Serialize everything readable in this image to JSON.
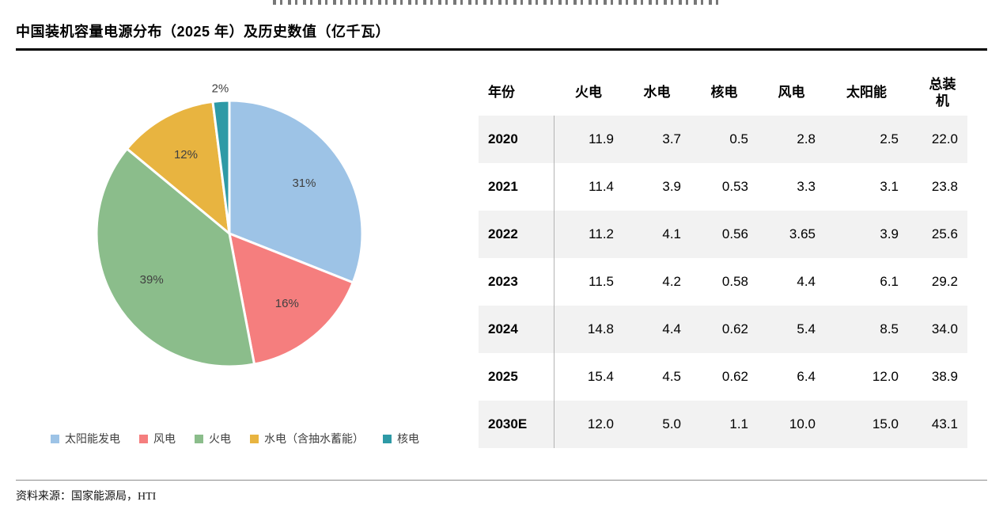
{
  "header": {
    "title": "中国装机容量电源分布（2025 年）及历史数值（亿千瓦）"
  },
  "footer": {
    "source": "资料来源：国家能源局，HTI"
  },
  "chart_data": [
    {
      "type": "pie",
      "title": "中国装机容量电源分布（2025 年）",
      "unit": "%",
      "start_angle": "top",
      "direction": "clockwise",
      "legend_position": "bottom",
      "slices": [
        {
          "label": "太阳能发电",
          "value": 31,
          "color": "#9DC3E6"
        },
        {
          "label": "风电",
          "value": 16,
          "color": "#F57E7E"
        },
        {
          "label": "火电",
          "value": 39,
          "color": "#8BBD8B"
        },
        {
          "label": "水电（含抽水蓄能）",
          "value": 12,
          "color": "#E8B440"
        },
        {
          "label": "核电",
          "value": 2,
          "color": "#2E9AA6"
        }
      ]
    },
    {
      "type": "table",
      "title": "历史数值（亿千瓦）",
      "columns": [
        "年份",
        "火电",
        "水电",
        "核电",
        "风电",
        "太阳能",
        "总装机"
      ],
      "rows": [
        [
          "2020",
          "11.9",
          "3.7",
          "0.5",
          "2.8",
          "2.5",
          "22.0"
        ],
        [
          "2021",
          "11.4",
          "3.9",
          "0.53",
          "3.3",
          "3.1",
          "23.8"
        ],
        [
          "2022",
          "11.2",
          "4.1",
          "0.56",
          "3.65",
          "3.9",
          "25.6"
        ],
        [
          "2023",
          "11.5",
          "4.2",
          "0.58",
          "4.4",
          "6.1",
          "29.2"
        ],
        [
          "2024",
          "14.8",
          "4.4",
          "0.62",
          "5.4",
          "8.5",
          "34.0"
        ],
        [
          "2025",
          "15.4",
          "4.5",
          "0.62",
          "6.4",
          "12.0",
          "38.9"
        ],
        [
          "2030E",
          "12.0",
          "5.0",
          "1.1",
          "10.0",
          "15.0",
          "43.1"
        ]
      ]
    }
  ]
}
